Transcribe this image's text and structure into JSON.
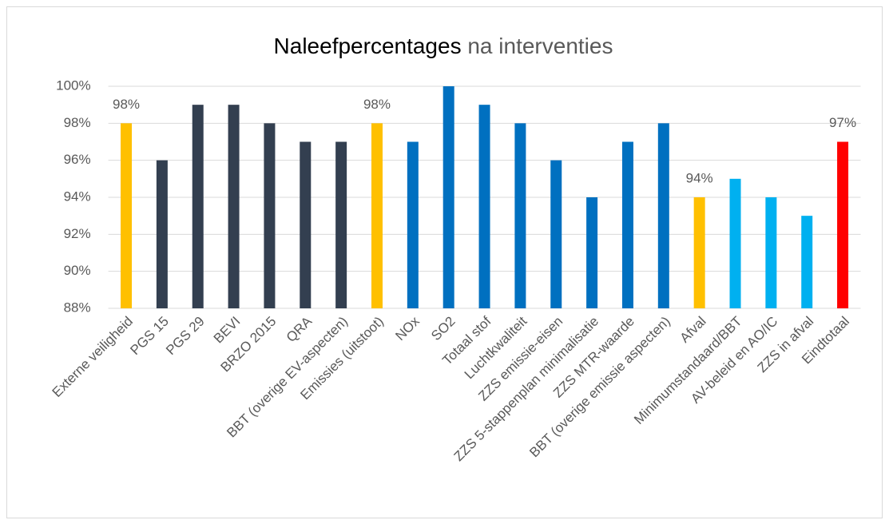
{
  "chart_data": {
    "type": "bar",
    "title": "Naleefpercentages",
    "subtitle": "na interventies",
    "categories": [
      "Externe veiligheid",
      "PGS 15",
      "PGS 29",
      "BEVI",
      "BRZO 2015",
      "QRA",
      "BBT (overige EV-aspecten)",
      "Emissies (uitstoot)",
      "NOx",
      "SO2",
      "Totaal stof",
      "Luchtkwaliteit",
      "ZZS emissie-eisen",
      "ZZS 5-stappenplan minimalisatie",
      "ZZS MTR-waarde",
      "BBT (overige emissie aspecten)",
      "Afval",
      "Minimumstandaard/BBT",
      "AV-beleid en AO/IC",
      "ZZS in afval",
      "Eindtotaal"
    ],
    "values": [
      98,
      96,
      99,
      99,
      98,
      97,
      97,
      98,
      97,
      100,
      99,
      98,
      96,
      94,
      97,
      98,
      94,
      95,
      94,
      93,
      97
    ],
    "value_labels": [
      "98%",
      null,
      null,
      null,
      null,
      null,
      null,
      "98%",
      null,
      null,
      null,
      null,
      null,
      null,
      null,
      null,
      "94%",
      null,
      null,
      null,
      "97%"
    ],
    "colors": [
      "#ffc000",
      "#333f50",
      "#333f50",
      "#333f50",
      "#333f50",
      "#333f50",
      "#333f50",
      "#ffc000",
      "#0070c0",
      "#0070c0",
      "#0070c0",
      "#0070c0",
      "#0070c0",
      "#0070c0",
      "#0070c0",
      "#0070c0",
      "#ffc000",
      "#00b0f0",
      "#00b0f0",
      "#00b0f0",
      "#ff0000"
    ],
    "ylim": [
      88,
      100
    ],
    "yticks": [
      {
        "value": 88,
        "label": "88%"
      },
      {
        "value": 90,
        "label": "90%"
      },
      {
        "value": 92,
        "label": "92%"
      },
      {
        "value": 94,
        "label": "94%"
      },
      {
        "value": 96,
        "label": "96%"
      },
      {
        "value": 98,
        "label": "98%"
      },
      {
        "value": 100,
        "label": "100%"
      }
    ],
    "grid": true
  }
}
